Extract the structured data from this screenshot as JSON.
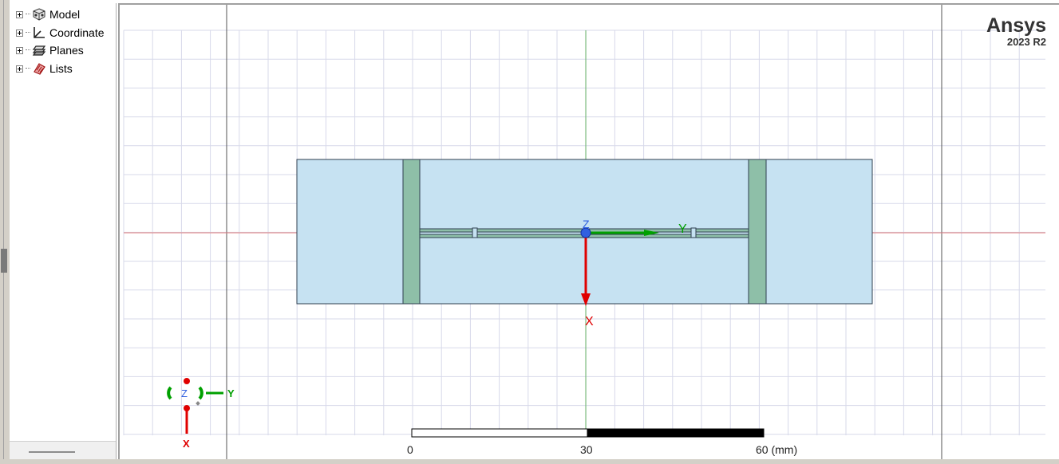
{
  "tree": {
    "items": [
      {
        "label": "Model",
        "icon": "model-icon"
      },
      {
        "label": "Coordinate",
        "icon": "coordinate-icon"
      },
      {
        "label": "Planes",
        "icon": "planes-icon"
      },
      {
        "label": "Lists",
        "icon": "lists-icon"
      }
    ]
  },
  "brand": {
    "name": "Ansys",
    "version": "2023 R2"
  },
  "axes": {
    "origin_label": "Z",
    "y_label": "Y",
    "x_label": "X"
  },
  "triad": {
    "z_label": "Z",
    "y_label": "Y",
    "x_label": "X"
  },
  "scale": {
    "label_0": "0",
    "label_30": "30",
    "label_60": "60 (mm)"
  },
  "colors": {
    "substrate": "#c6e2f2",
    "conductor": "#8ebfa8",
    "x_axis": "#e00000",
    "y_axis": "#00a000",
    "z_axis": "#2050d0"
  }
}
